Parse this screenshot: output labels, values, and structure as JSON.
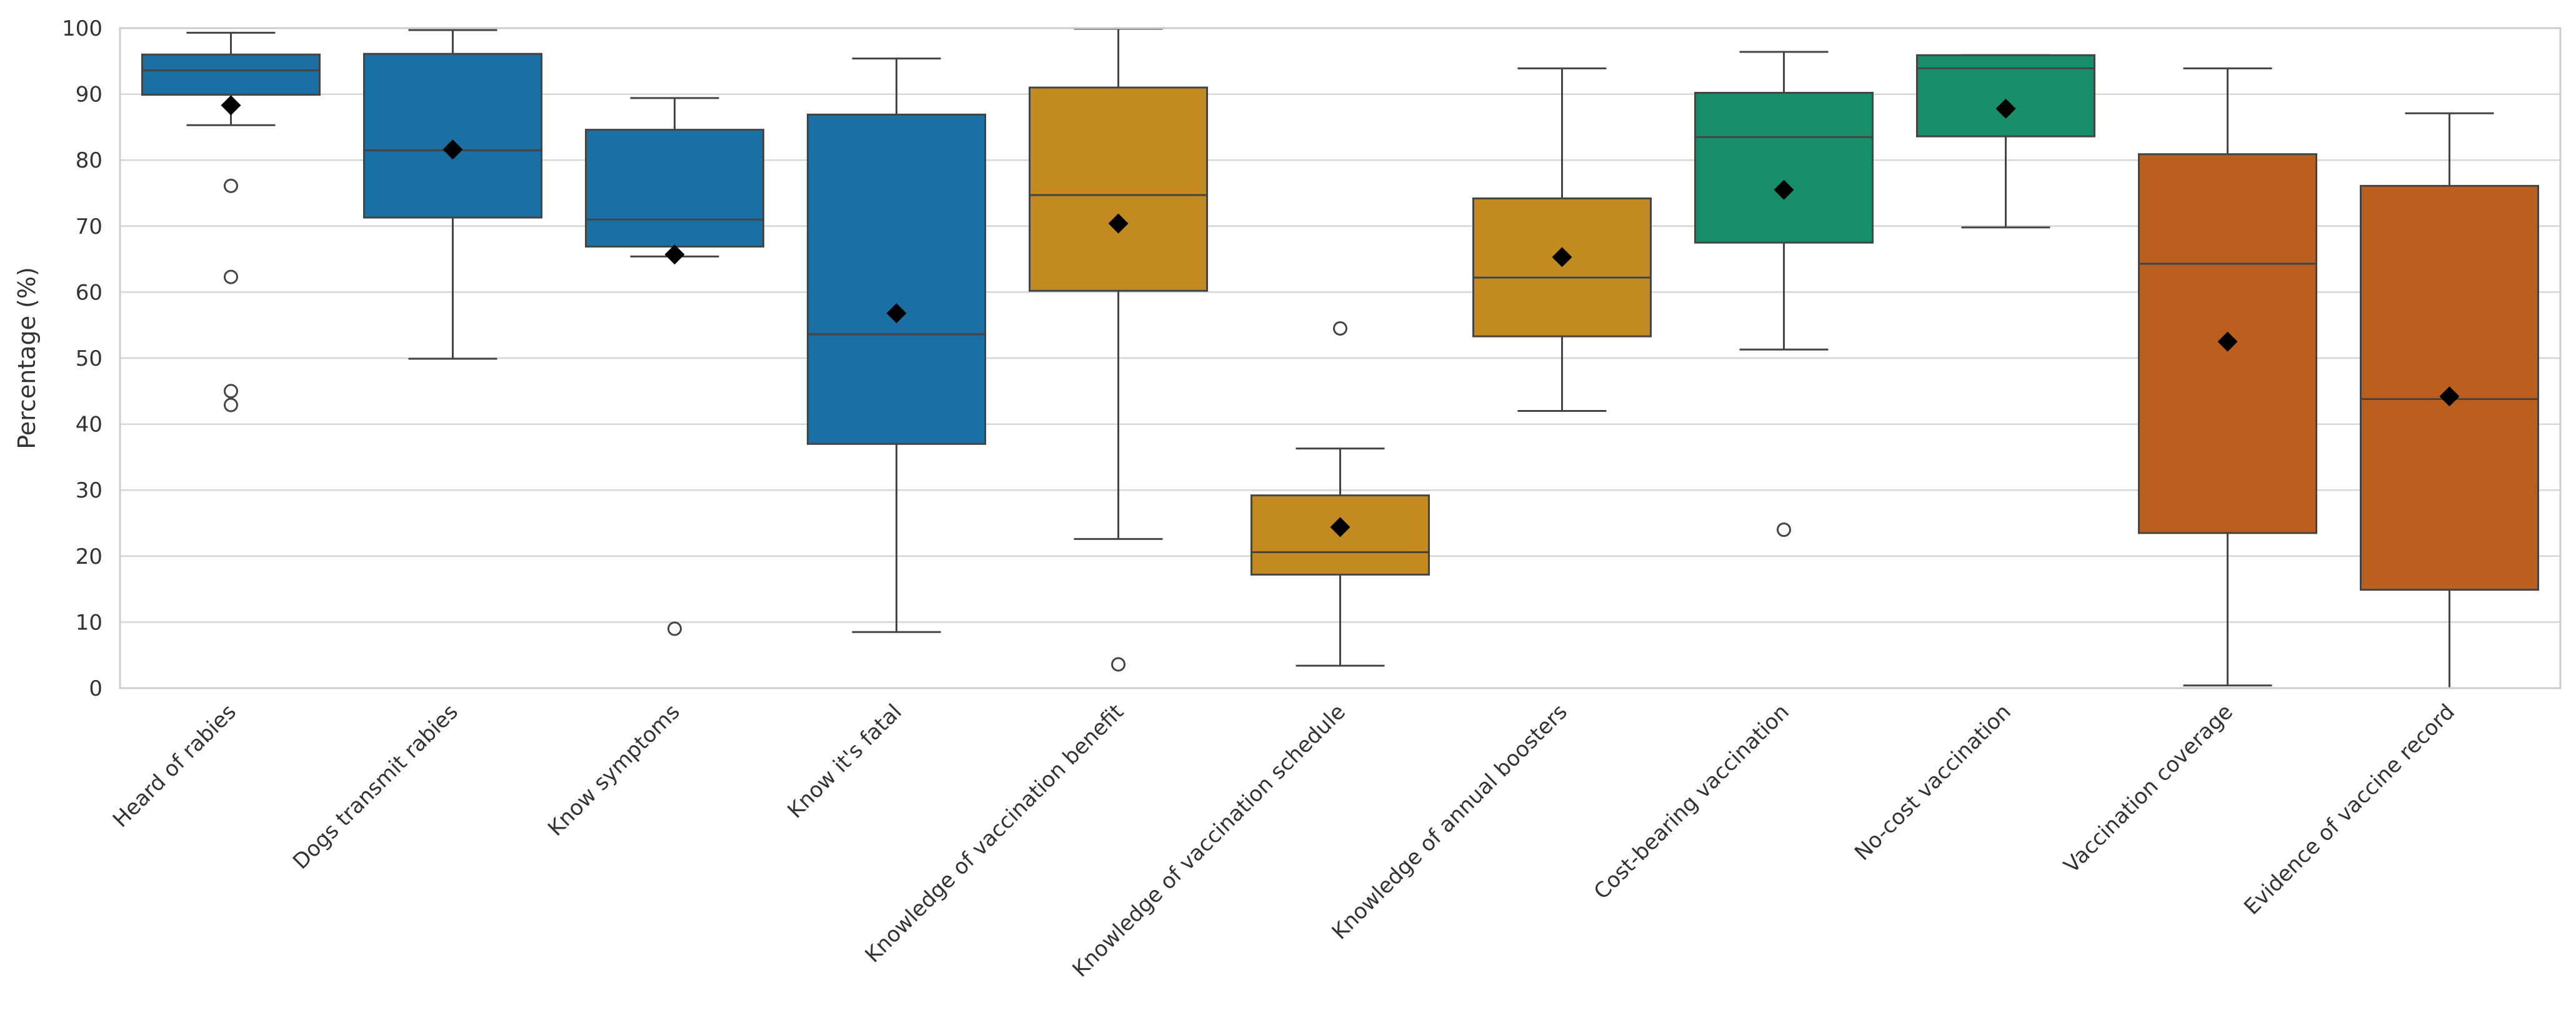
{
  "chart_data": {
    "type": "box",
    "ylabel": "Percentage (%)",
    "xlabel": "",
    "ylim": [
      0,
      100
    ],
    "yticks": [
      0,
      10,
      20,
      30,
      40,
      50,
      60,
      70,
      80,
      90,
      100
    ],
    "grid": "horizontal",
    "mean_marker": "diamond",
    "categories": [
      "Heard of rabies",
      "Dogs transmit rabies",
      "Know symptoms",
      "Know it's fatal",
      "Knowledge of vaccination benefit",
      "Knowledge of vaccination schedule",
      "Knowledge of annual boosters",
      "Cost-bearing vaccination",
      "No-cost vaccination",
      "Vaccination coverage",
      "Evidence of vaccine record"
    ],
    "boxes": [
      {
        "group": "knowledge",
        "color": "#1a6fa3",
        "whisker_low": 85.3,
        "q1": 89.9,
        "median": 93.6,
        "q3": 96.0,
        "whisker_high": 99.3,
        "mean": 88.3,
        "outliers": [
          76.1,
          62.3,
          45.0,
          42.9
        ]
      },
      {
        "group": "knowledge",
        "color": "#1a6fa3",
        "whisker_low": 49.9,
        "q1": 71.3,
        "median": 81.5,
        "q3": 96.1,
        "whisker_high": 99.7,
        "mean": 81.6,
        "outliers": []
      },
      {
        "group": "knowledge",
        "color": "#1a6fa3",
        "whisker_low": 65.4,
        "q1": 66.9,
        "median": 71.0,
        "q3": 84.6,
        "whisker_high": 89.4,
        "mean": 65.7,
        "outliers": [
          9.0
        ]
      },
      {
        "group": "knowledge",
        "color": "#1a6fa3",
        "whisker_low": 8.5,
        "q1": 37.0,
        "median": 53.6,
        "q3": 86.9,
        "whisker_high": 95.4,
        "mean": 56.8,
        "outliers": []
      },
      {
        "group": "practice-knowledge",
        "color": "#c48a22",
        "whisker_low": 22.6,
        "q1": 60.2,
        "median": 74.7,
        "q3": 91.0,
        "whisker_high": 99.9,
        "mean": 70.4,
        "outliers": [
          3.6
        ]
      },
      {
        "group": "practice-knowledge",
        "color": "#c48a22",
        "whisker_low": 3.4,
        "q1": 17.2,
        "median": 20.6,
        "q3": 29.2,
        "whisker_high": 36.3,
        "mean": 24.4,
        "outliers": [
          54.5
        ]
      },
      {
        "group": "practice-knowledge",
        "color": "#c48a22",
        "whisker_low": 42.0,
        "q1": 53.3,
        "median": 62.2,
        "q3": 74.2,
        "whisker_high": 93.9,
        "mean": 65.3,
        "outliers": []
      },
      {
        "group": "willingness",
        "color": "#178e6a",
        "whisker_low": 51.3,
        "q1": 67.5,
        "median": 83.5,
        "q3": 90.2,
        "whisker_high": 96.4,
        "mean": 75.5,
        "outliers": [
          24.0
        ]
      },
      {
        "group": "willingness",
        "color": "#178e6a",
        "whisker_low": 69.8,
        "q1": 83.6,
        "median": 93.9,
        "q3": 95.9,
        "whisker_high": 95.9,
        "mean": 87.8,
        "outliers": []
      },
      {
        "group": "coverage",
        "color": "#bb5f1e",
        "whisker_low": 0.4,
        "q1": 23.5,
        "median": 64.3,
        "q3": 80.9,
        "whisker_high": 93.9,
        "mean": 52.5,
        "outliers": []
      },
      {
        "group": "coverage",
        "color": "#bb5f1e",
        "whisker_low": 0.0,
        "q1": 14.9,
        "median": 43.8,
        "q3": 76.1,
        "whisker_high": 87.1,
        "mean": 44.2,
        "outliers": []
      }
    ]
  }
}
